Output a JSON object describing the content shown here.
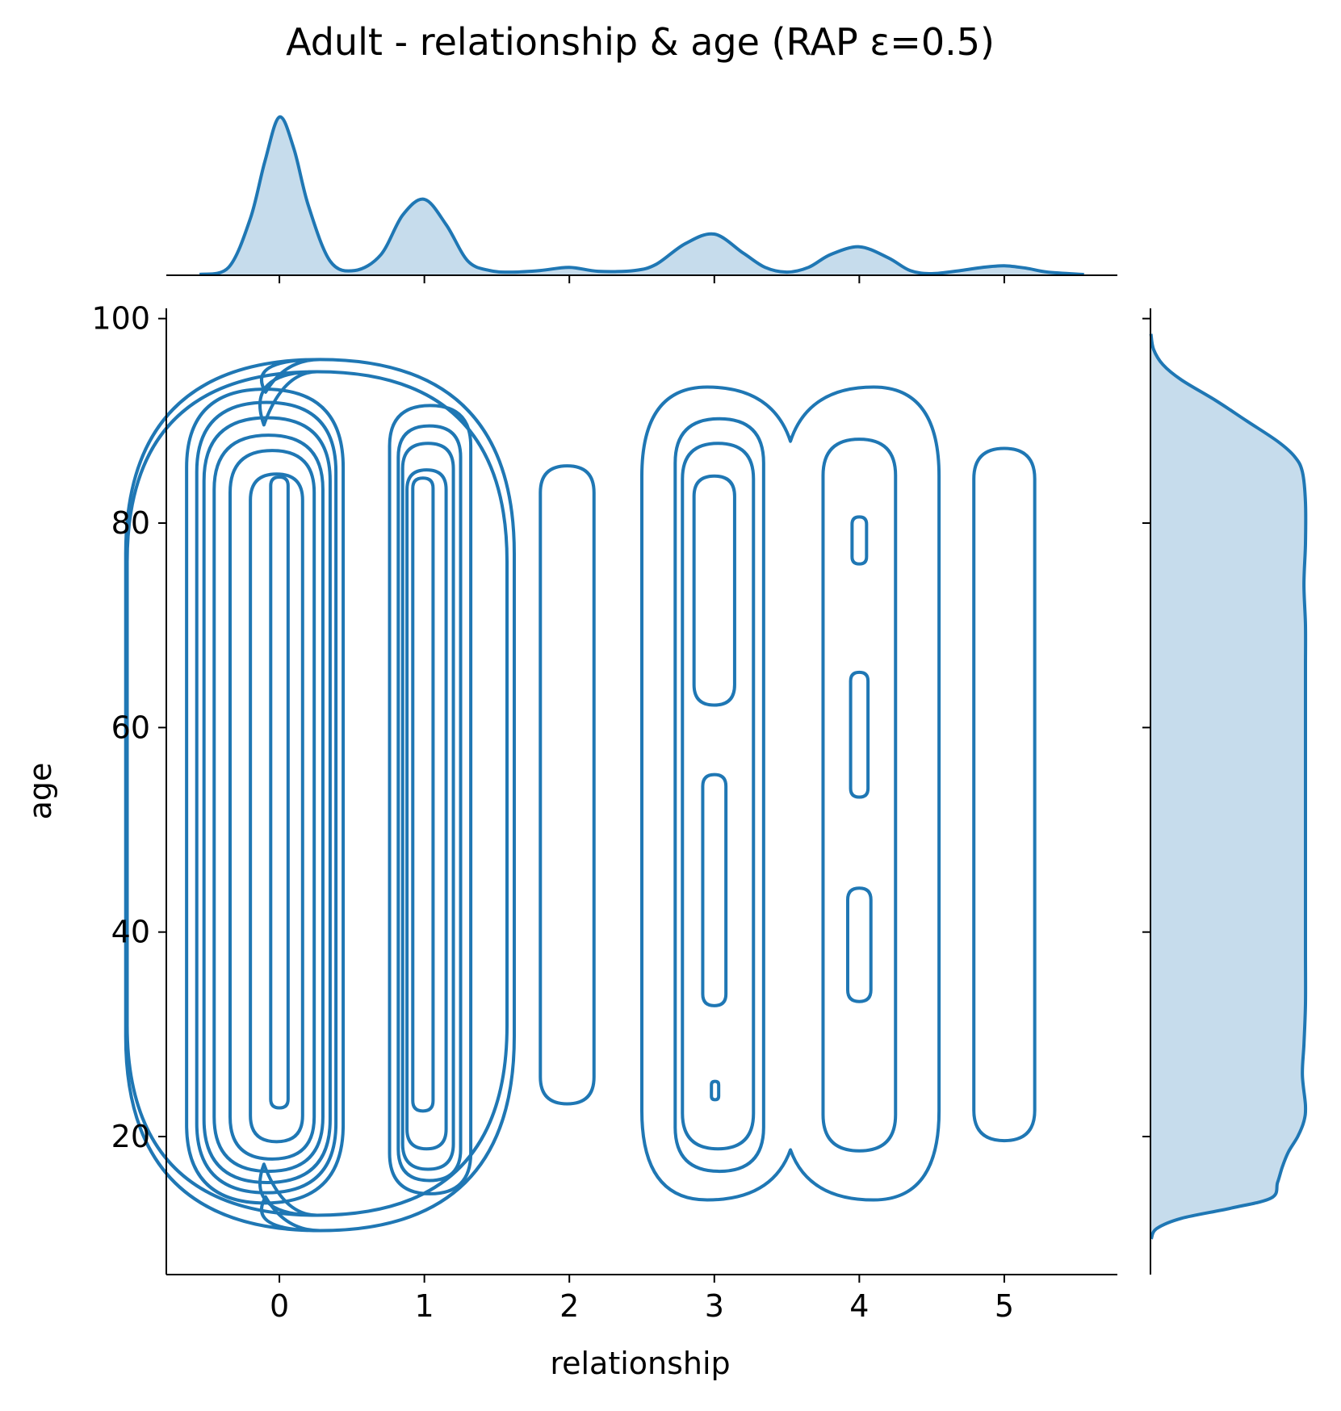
{
  "chart_data": {
    "type": "kde-joint",
    "title": "Adult - relationship & age (RAP ε=0.5)",
    "xlabel": "relationship",
    "ylabel": "age",
    "xlim": [
      -0.78,
      5.78
    ],
    "ylim": [
      6.5,
      101
    ],
    "xticks": [
      0,
      1,
      2,
      3,
      4,
      5
    ],
    "yticks": [
      20,
      40,
      60,
      80,
      100
    ],
    "color": "#1f77b4",
    "fill_color": "#c6dcec",
    "marginal_x": {
      "x": [
        -0.55,
        -0.35,
        -0.2,
        -0.1,
        0,
        0.1,
        0.2,
        0.35,
        0.52,
        0.7,
        0.85,
        1,
        1.15,
        1.3,
        1.45,
        1.6,
        1.8,
        2,
        2.2,
        2.45,
        2.6,
        2.8,
        3,
        3.2,
        3.35,
        3.5,
        3.65,
        3.8,
        4,
        4.2,
        4.35,
        4.5,
        4.7,
        4.85,
        5,
        5.15,
        5.3,
        5.55
      ],
      "density": [
        0.005,
        0.05,
        0.36,
        0.72,
        1.0,
        0.8,
        0.44,
        0.09,
        0.03,
        0.13,
        0.38,
        0.48,
        0.32,
        0.09,
        0.03,
        0.02,
        0.03,
        0.05,
        0.025,
        0.03,
        0.07,
        0.2,
        0.26,
        0.14,
        0.05,
        0.02,
        0.05,
        0.13,
        0.18,
        0.11,
        0.03,
        0.01,
        0.03,
        0.05,
        0.06,
        0.045,
        0.02,
        0.005
      ]
    },
    "marginal_y": {
      "y": [
        10,
        11,
        12,
        13,
        14,
        15.5,
        17,
        18.5,
        20,
        21.5,
        23,
        26,
        29,
        33,
        38,
        44,
        48,
        53,
        58,
        62,
        66,
        70,
        74,
        78,
        82,
        85,
        86.5,
        88,
        90,
        92,
        94,
        95.5,
        97,
        98.5
      ],
      "density": [
        0.005,
        0.04,
        0.2,
        0.52,
        0.78,
        0.82,
        0.85,
        0.89,
        0.95,
        0.99,
        1.0,
        0.98,
        0.99,
        1.0,
        1.0,
        1.0,
        1.0,
        1.0,
        1.0,
        1.0,
        1.0,
        1.0,
        0.99,
        1.0,
        1.0,
        0.98,
        0.93,
        0.82,
        0.62,
        0.42,
        0.2,
        0.08,
        0.02,
        0.003
      ]
    },
    "contours": [
      {
        "shape": "box",
        "x": [
          -1.06,
          1.62
        ],
        "y": [
          10.8,
          96
        ],
        "waist_top": 92.8,
        "waist_bottom": 14.1
      },
      {
        "shape": "box",
        "x": [
          -1.05,
          1.57
        ],
        "y": [
          12.3,
          94.8
        ],
        "waist_top": 89.6,
        "waist_bottom": 17.3
      },
      {
        "shape": "box",
        "x": [
          -0.64,
          0.44
        ],
        "y": [
          13.5,
          93.1
        ]
      },
      {
        "shape": "box",
        "x": [
          -0.57,
          0.39
        ],
        "y": [
          14.5,
          91.8
        ]
      },
      {
        "shape": "box",
        "x": [
          -0.52,
          0.35
        ],
        "y": [
          15.5,
          90.3
        ]
      },
      {
        "shape": "box",
        "x": [
          -0.45,
          0.3
        ],
        "y": [
          16.6,
          88.6
        ]
      },
      {
        "shape": "box",
        "x": [
          -0.34,
          0.24
        ],
        "y": [
          17.8,
          87.1
        ]
      },
      {
        "shape": "box",
        "x": [
          -0.2,
          0.16
        ],
        "y": [
          19.5,
          84.8
        ]
      },
      {
        "shape": "box",
        "x": [
          -0.06,
          0.06
        ],
        "y": [
          22.8,
          84.5
        ]
      },
      {
        "shape": "box",
        "x": [
          0.76,
          1.32
        ],
        "y": [
          14.4,
          91.5
        ]
      },
      {
        "shape": "box",
        "x": [
          0.82,
          1.25
        ],
        "y": [
          15.7,
          89.5
        ]
      },
      {
        "shape": "box",
        "x": [
          0.85,
          1.2
        ],
        "y": [
          16.8,
          87.8
        ]
      },
      {
        "shape": "box",
        "x": [
          0.88,
          1.15
        ],
        "y": [
          18.8,
          85.2
        ]
      },
      {
        "shape": "box",
        "x": [
          0.92,
          1.06
        ],
        "y": [
          22.5,
          84.4
        ]
      },
      {
        "shape": "box",
        "x": [
          1.8,
          2.17
        ],
        "y": [
          23.2,
          85.6
        ]
      },
      {
        "shape": "box",
        "x": [
          2.5,
          4.55
        ],
        "y": [
          13.8,
          93.3
        ],
        "waist_top": 88.0,
        "waist_bottom": 18.7
      },
      {
        "shape": "box",
        "x": [
          2.73,
          3.34
        ],
        "y": [
          16.6,
          90.2
        ]
      },
      {
        "shape": "box",
        "x": [
          2.78,
          3.27
        ],
        "y": [
          18.8,
          87.8
        ]
      },
      {
        "shape": "box",
        "x": [
          2.86,
          3.14
        ],
        "y": [
          62.2,
          84.6
        ]
      },
      {
        "shape": "box",
        "x": [
          2.92,
          3.08
        ],
        "y": [
          32.8,
          55.4
        ]
      },
      {
        "shape": "box",
        "x": [
          2.98,
          3.03
        ],
        "y": [
          23.6,
          25.4
        ]
      },
      {
        "shape": "box",
        "x": [
          3.75,
          4.25
        ],
        "y": [
          18.6,
          88.2
        ]
      },
      {
        "shape": "box",
        "x": [
          3.95,
          4.05
        ],
        "y": [
          76.0,
          80.6
        ]
      },
      {
        "shape": "box",
        "x": [
          3.94,
          4.06
        ],
        "y": [
          53.2,
          65.4
        ]
      },
      {
        "shape": "box",
        "x": [
          3.92,
          4.08
        ],
        "y": [
          33.2,
          44.3
        ]
      },
      {
        "shape": "box",
        "x": [
          4.79,
          5.21
        ],
        "y": [
          19.6,
          87.3
        ]
      }
    ]
  }
}
